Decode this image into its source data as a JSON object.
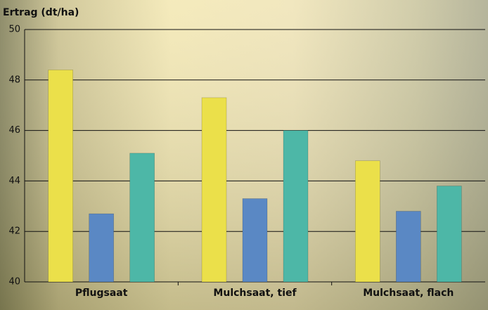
{
  "chart_data": {
    "type": "bar",
    "y_label": "Ertrag (dt/ha)",
    "categories": [
      "Pflugsaat",
      "Mulchsaat, tief",
      "Mulchsaat, flach"
    ],
    "series": [
      {
        "color": "#ebe04a",
        "values": [
          48.4,
          47.3,
          44.8
        ]
      },
      {
        "color": "#5a88c4",
        "values": [
          42.7,
          43.3,
          42.8
        ]
      },
      {
        "color": "#4db7a7",
        "values": [
          45.1,
          46.0,
          43.8
        ]
      }
    ],
    "ylim": [
      40,
      50
    ],
    "yticks": [
      40,
      42,
      44,
      46,
      48,
      50
    ],
    "grid": true
  }
}
